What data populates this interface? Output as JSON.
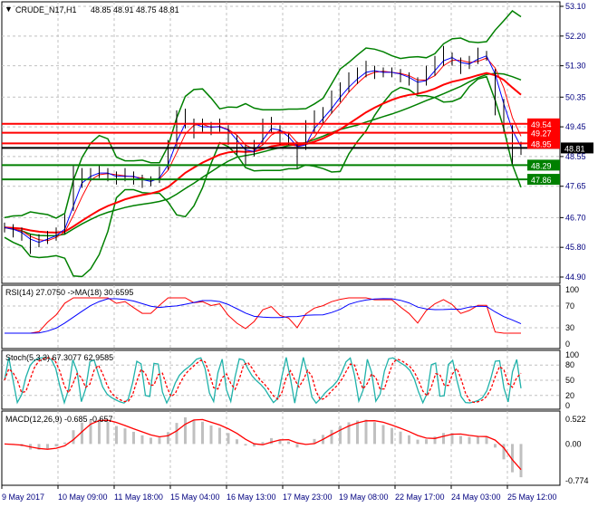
{
  "header": {
    "symbol_label": "CRUDE_N17,H1",
    "ohlc": "48.85 48.91 48.75 48.81"
  },
  "price_axis": {
    "ticks": [
      "53.10",
      "52.20",
      "51.30",
      "50.35",
      "49.45",
      "48.55",
      "47.65",
      "46.70",
      "45.80",
      "44.90"
    ],
    "tick_values": [
      53.1,
      52.2,
      51.3,
      50.35,
      49.45,
      48.55,
      47.65,
      46.7,
      45.8,
      44.9
    ],
    "range": [
      44.9,
      53.1
    ]
  },
  "levels": {
    "resistance": [
      {
        "label": "49.54",
        "value": 49.54
      },
      {
        "label": "49.27",
        "value": 49.27
      },
      {
        "label": "48.95",
        "value": 48.95
      }
    ],
    "support": [
      {
        "label": "48.29",
        "value": 48.29
      },
      {
        "label": "47.86",
        "value": 47.86
      }
    ],
    "current": {
      "label": "48.81",
      "value": 48.81
    }
  },
  "colors": {
    "resistance": "#ff0000",
    "support": "#008000",
    "bands": "#008000",
    "ma_fast": "#ff0000",
    "ma_slow": "#0000ff",
    "axis_text": "#000080",
    "stoch_main": "#20b2aa",
    "stoch_signal": "#ff0000",
    "macd_hist": "#c0c0c0",
    "macd_signal": "#ff0000"
  },
  "closes": [
    46.4,
    46.3,
    46.2,
    45.9,
    46.0,
    46.1,
    46.2,
    46.5,
    47.6,
    47.9,
    48.0,
    48.1,
    48.0,
    47.9,
    48.0,
    47.9,
    47.8,
    47.8,
    48.0,
    48.6,
    49.4,
    49.7,
    49.4,
    49.5,
    49.4,
    49.5,
    49.2,
    48.9,
    48.6,
    48.8,
    49.3,
    49.5,
    49.2,
    49.1,
    48.6,
    49.2,
    49.6,
    49.8,
    50.2,
    50.5,
    50.8,
    51.0,
    51.2,
    51.1,
    51.1,
    51.1,
    51.0,
    50.9,
    50.7,
    51.0,
    51.3,
    51.6,
    51.5,
    51.3,
    51.4,
    51.6,
    51.6,
    50.5,
    49.8,
    48.9,
    48.8
  ],
  "rsi": {
    "label": "RSI(14) 27.0750  ->MA(18) 30.6595",
    "ticks": [
      "100",
      "70",
      "30",
      "0"
    ],
    "tick_values": [
      100,
      70,
      30,
      0
    ]
  },
  "stoch": {
    "label": "Stoch(5,3,3) 67.3077 62.9585",
    "ticks": [
      "100",
      "80",
      "50",
      "20",
      "0"
    ],
    "tick_values": [
      100,
      80,
      50,
      20,
      0
    ]
  },
  "macd": {
    "label": "MACD(12,26,9) -0.685 -0.657",
    "ticks": [
      "0.522",
      "0.00",
      "-0.774"
    ],
    "tick_values": [
      0.522,
      0,
      -0.774
    ]
  },
  "time_axis": [
    "9 May 2017",
    "10 May 09:00",
    "11 May 18:00",
    "15 May 04:00",
    "16 May 13:00",
    "17 May 23:00",
    "19 May 08:00",
    "22 May 17:00",
    "24 May 03:00",
    "25 May 12:00"
  ]
}
